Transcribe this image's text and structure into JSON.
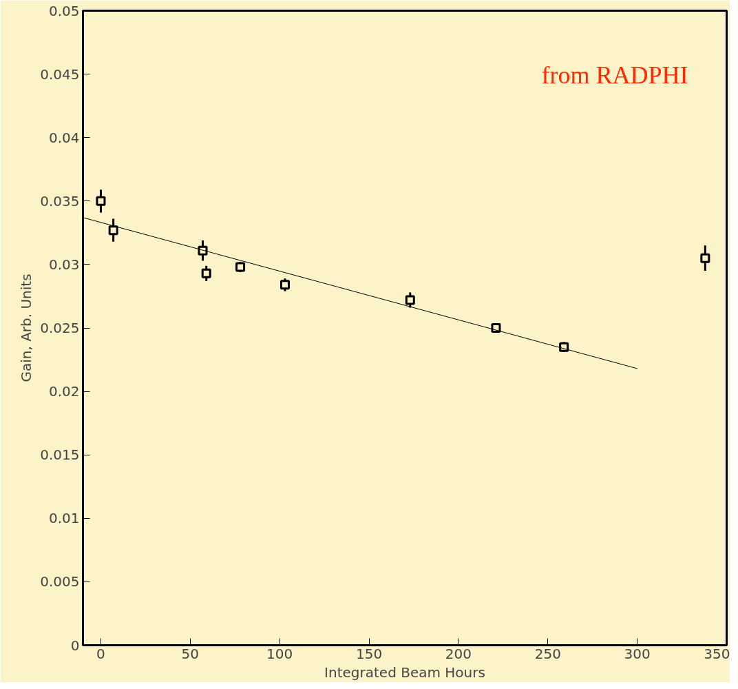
{
  "chart_data": {
    "type": "scatter",
    "xlabel": "Integrated Beam Hours",
    "ylabel": "Gain, Arb. Units",
    "annotations": [
      "from RADPHI"
    ],
    "xlim": [
      -10,
      350
    ],
    "xticks": [
      0,
      50,
      100,
      150,
      200,
      250,
      300,
      350
    ],
    "ylim": [
      0,
      0.05
    ],
    "yticks": [
      0,
      0.005,
      0.01,
      0.015,
      0.02,
      0.025,
      0.03,
      0.035,
      0.04,
      0.045,
      0.05
    ],
    "grid": false,
    "series": [
      {
        "marker": "square",
        "color": "#000000",
        "x": [
          0,
          7,
          57,
          59,
          78,
          103,
          173,
          221,
          259,
          338
        ],
        "values": [
          0.035,
          0.0327,
          0.0311,
          0.0293,
          0.0298,
          0.0284,
          0.0272,
          0.025,
          0.0235,
          0.0305
        ],
        "errors": [
          0.0009,
          0.0009,
          0.0008,
          0.0006,
          0.0004,
          0.0005,
          0.0006,
          0.0003,
          0.0004,
          0.001
        ]
      },
      {
        "type": "line",
        "color": "#000000",
        "x": [
          -10,
          300
        ],
        "values": [
          0.0337,
          0.0218
        ]
      }
    ]
  }
}
